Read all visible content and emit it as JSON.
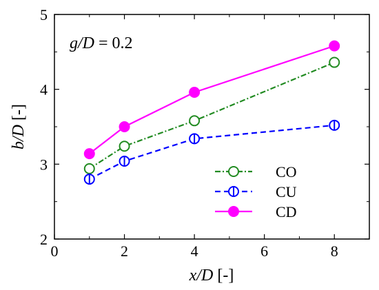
{
  "chart_data": {
    "type": "line",
    "annotation": {
      "italic": "g/D",
      "rest": " = 0.2"
    },
    "xlabel": {
      "italic": "x/D",
      "rest": " [-]"
    },
    "ylabel": {
      "italic": "b/D",
      "rest": " [-]"
    },
    "xlim": [
      0,
      9
    ],
    "ylim": [
      2,
      5
    ],
    "xticks": [
      0,
      2,
      4,
      6,
      8
    ],
    "yticks": [
      2,
      3,
      4,
      5
    ],
    "grid": false,
    "legend_position": "bottom-right",
    "x": [
      1,
      2,
      4,
      8
    ],
    "series": [
      {
        "name": "CO",
        "values": [
          2.94,
          3.24,
          3.58,
          4.36
        ],
        "color": "#228B22",
        "dash": "8,3,2,3",
        "marker": "open-circle"
      },
      {
        "name": "CU",
        "values": [
          2.8,
          3.04,
          3.34,
          3.52
        ],
        "color": "#0000FF",
        "dash": "8,5",
        "marker": "circle-vertical-bar"
      },
      {
        "name": "CD",
        "values": [
          3.14,
          3.5,
          3.96,
          4.58
        ],
        "color": "#FF00FF",
        "dash": "",
        "marker": "filled-circle"
      }
    ]
  }
}
